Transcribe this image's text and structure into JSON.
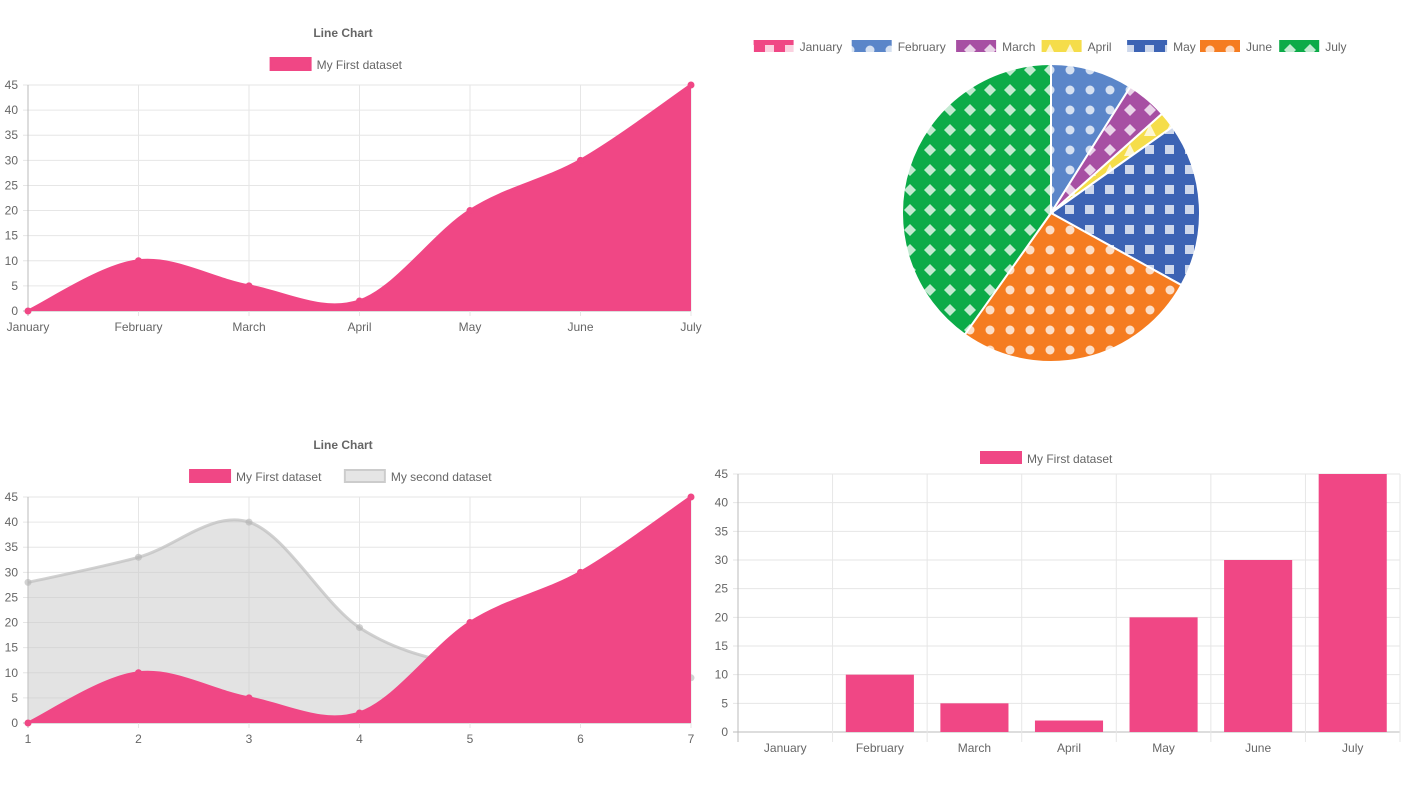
{
  "chart_data": [
    {
      "type": "area",
      "title": "Line Chart",
      "categories": [
        "January",
        "February",
        "March",
        "April",
        "May",
        "June",
        "July"
      ],
      "series": [
        {
          "name": "My First dataset",
          "values": [
            0,
            10,
            5,
            2,
            20,
            30,
            45
          ],
          "color": "#f04785"
        }
      ],
      "ylim": [
        0,
        45
      ],
      "yticks": [
        0,
        5,
        10,
        15,
        20,
        25,
        30,
        35,
        40,
        45
      ],
      "grid": true,
      "legend": "top"
    },
    {
      "type": "pie",
      "categories": [
        "January",
        "February",
        "March",
        "April",
        "May",
        "June",
        "July"
      ],
      "values": [
        0,
        10,
        5,
        2,
        20,
        30,
        45
      ],
      "colors": [
        "#f04785",
        "#5b86c9",
        "#a74fa3",
        "#f5dd4a",
        "#3c63b4",
        "#f57c20",
        "#0bab48"
      ],
      "patterns": [
        "square",
        "circle",
        "diamond",
        "triangle",
        "square",
        "circle",
        "diamond"
      ],
      "legend": "top"
    },
    {
      "type": "area",
      "title": "Line Chart",
      "categories": [
        "1",
        "2",
        "3",
        "4",
        "5",
        "6",
        "7"
      ],
      "series": [
        {
          "name": "My First dataset",
          "values": [
            0,
            10,
            5,
            2,
            20,
            30,
            45
          ],
          "color": "#f04785"
        },
        {
          "name": "My second dataset",
          "values": [
            28,
            33,
            40,
            19,
            11,
            8,
            9
          ],
          "color": "#cccccc"
        }
      ],
      "ylim": [
        0,
        45
      ],
      "yticks": [
        0,
        5,
        10,
        15,
        20,
        25,
        30,
        35,
        40,
        45
      ],
      "grid": true,
      "legend": "top"
    },
    {
      "type": "bar",
      "categories": [
        "January",
        "February",
        "March",
        "April",
        "May",
        "June",
        "July"
      ],
      "series": [
        {
          "name": "My First dataset",
          "values": [
            0,
            10,
            5,
            2,
            20,
            30,
            45
          ],
          "color": "#f04785"
        }
      ],
      "ylim": [
        0,
        45
      ],
      "yticks": [
        0,
        5,
        10,
        15,
        20,
        25,
        30,
        35,
        40,
        45
      ],
      "grid": true,
      "legend": "top"
    }
  ]
}
